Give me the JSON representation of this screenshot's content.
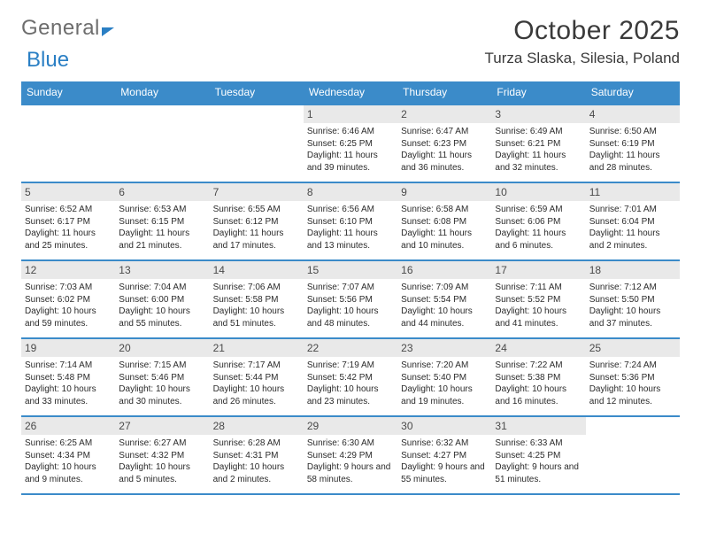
{
  "brand": {
    "text_gray": "General",
    "text_blue": "Blue"
  },
  "title": "October 2025",
  "location": "Turza Slaska, Silesia, Poland",
  "colors": {
    "header_bg": "#3b8bc9",
    "header_text": "#ffffff",
    "daynum_bg": "#e9e9e9",
    "text": "#2b2b2b",
    "rule": "#3b8bc9",
    "logo_gray": "#6d6d6d",
    "logo_blue": "#2a7fc4"
  },
  "daynames": [
    "Sunday",
    "Monday",
    "Tuesday",
    "Wednesday",
    "Thursday",
    "Friday",
    "Saturday"
  ],
  "weeks": [
    [
      {
        "n": "",
        "sr": "",
        "ss": "",
        "dl": ""
      },
      {
        "n": "",
        "sr": "",
        "ss": "",
        "dl": ""
      },
      {
        "n": "",
        "sr": "",
        "ss": "",
        "dl": ""
      },
      {
        "n": "1",
        "sr": "Sunrise: 6:46 AM",
        "ss": "Sunset: 6:25 PM",
        "dl": "Daylight: 11 hours and 39 minutes."
      },
      {
        "n": "2",
        "sr": "Sunrise: 6:47 AM",
        "ss": "Sunset: 6:23 PM",
        "dl": "Daylight: 11 hours and 36 minutes."
      },
      {
        "n": "3",
        "sr": "Sunrise: 6:49 AM",
        "ss": "Sunset: 6:21 PM",
        "dl": "Daylight: 11 hours and 32 minutes."
      },
      {
        "n": "4",
        "sr": "Sunrise: 6:50 AM",
        "ss": "Sunset: 6:19 PM",
        "dl": "Daylight: 11 hours and 28 minutes."
      }
    ],
    [
      {
        "n": "5",
        "sr": "Sunrise: 6:52 AM",
        "ss": "Sunset: 6:17 PM",
        "dl": "Daylight: 11 hours and 25 minutes."
      },
      {
        "n": "6",
        "sr": "Sunrise: 6:53 AM",
        "ss": "Sunset: 6:15 PM",
        "dl": "Daylight: 11 hours and 21 minutes."
      },
      {
        "n": "7",
        "sr": "Sunrise: 6:55 AM",
        "ss": "Sunset: 6:12 PM",
        "dl": "Daylight: 11 hours and 17 minutes."
      },
      {
        "n": "8",
        "sr": "Sunrise: 6:56 AM",
        "ss": "Sunset: 6:10 PM",
        "dl": "Daylight: 11 hours and 13 minutes."
      },
      {
        "n": "9",
        "sr": "Sunrise: 6:58 AM",
        "ss": "Sunset: 6:08 PM",
        "dl": "Daylight: 11 hours and 10 minutes."
      },
      {
        "n": "10",
        "sr": "Sunrise: 6:59 AM",
        "ss": "Sunset: 6:06 PM",
        "dl": "Daylight: 11 hours and 6 minutes."
      },
      {
        "n": "11",
        "sr": "Sunrise: 7:01 AM",
        "ss": "Sunset: 6:04 PM",
        "dl": "Daylight: 11 hours and 2 minutes."
      }
    ],
    [
      {
        "n": "12",
        "sr": "Sunrise: 7:03 AM",
        "ss": "Sunset: 6:02 PM",
        "dl": "Daylight: 10 hours and 59 minutes."
      },
      {
        "n": "13",
        "sr": "Sunrise: 7:04 AM",
        "ss": "Sunset: 6:00 PM",
        "dl": "Daylight: 10 hours and 55 minutes."
      },
      {
        "n": "14",
        "sr": "Sunrise: 7:06 AM",
        "ss": "Sunset: 5:58 PM",
        "dl": "Daylight: 10 hours and 51 minutes."
      },
      {
        "n": "15",
        "sr": "Sunrise: 7:07 AM",
        "ss": "Sunset: 5:56 PM",
        "dl": "Daylight: 10 hours and 48 minutes."
      },
      {
        "n": "16",
        "sr": "Sunrise: 7:09 AM",
        "ss": "Sunset: 5:54 PM",
        "dl": "Daylight: 10 hours and 44 minutes."
      },
      {
        "n": "17",
        "sr": "Sunrise: 7:11 AM",
        "ss": "Sunset: 5:52 PM",
        "dl": "Daylight: 10 hours and 41 minutes."
      },
      {
        "n": "18",
        "sr": "Sunrise: 7:12 AM",
        "ss": "Sunset: 5:50 PM",
        "dl": "Daylight: 10 hours and 37 minutes."
      }
    ],
    [
      {
        "n": "19",
        "sr": "Sunrise: 7:14 AM",
        "ss": "Sunset: 5:48 PM",
        "dl": "Daylight: 10 hours and 33 minutes."
      },
      {
        "n": "20",
        "sr": "Sunrise: 7:15 AM",
        "ss": "Sunset: 5:46 PM",
        "dl": "Daylight: 10 hours and 30 minutes."
      },
      {
        "n": "21",
        "sr": "Sunrise: 7:17 AM",
        "ss": "Sunset: 5:44 PM",
        "dl": "Daylight: 10 hours and 26 minutes."
      },
      {
        "n": "22",
        "sr": "Sunrise: 7:19 AM",
        "ss": "Sunset: 5:42 PM",
        "dl": "Daylight: 10 hours and 23 minutes."
      },
      {
        "n": "23",
        "sr": "Sunrise: 7:20 AM",
        "ss": "Sunset: 5:40 PM",
        "dl": "Daylight: 10 hours and 19 minutes."
      },
      {
        "n": "24",
        "sr": "Sunrise: 7:22 AM",
        "ss": "Sunset: 5:38 PM",
        "dl": "Daylight: 10 hours and 16 minutes."
      },
      {
        "n": "25",
        "sr": "Sunrise: 7:24 AM",
        "ss": "Sunset: 5:36 PM",
        "dl": "Daylight: 10 hours and 12 minutes."
      }
    ],
    [
      {
        "n": "26",
        "sr": "Sunrise: 6:25 AM",
        "ss": "Sunset: 4:34 PM",
        "dl": "Daylight: 10 hours and 9 minutes."
      },
      {
        "n": "27",
        "sr": "Sunrise: 6:27 AM",
        "ss": "Sunset: 4:32 PM",
        "dl": "Daylight: 10 hours and 5 minutes."
      },
      {
        "n": "28",
        "sr": "Sunrise: 6:28 AM",
        "ss": "Sunset: 4:31 PM",
        "dl": "Daylight: 10 hours and 2 minutes."
      },
      {
        "n": "29",
        "sr": "Sunrise: 6:30 AM",
        "ss": "Sunset: 4:29 PM",
        "dl": "Daylight: 9 hours and 58 minutes."
      },
      {
        "n": "30",
        "sr": "Sunrise: 6:32 AM",
        "ss": "Sunset: 4:27 PM",
        "dl": "Daylight: 9 hours and 55 minutes."
      },
      {
        "n": "31",
        "sr": "Sunrise: 6:33 AM",
        "ss": "Sunset: 4:25 PM",
        "dl": "Daylight: 9 hours and 51 minutes."
      },
      {
        "n": "",
        "sr": "",
        "ss": "",
        "dl": ""
      }
    ]
  ]
}
